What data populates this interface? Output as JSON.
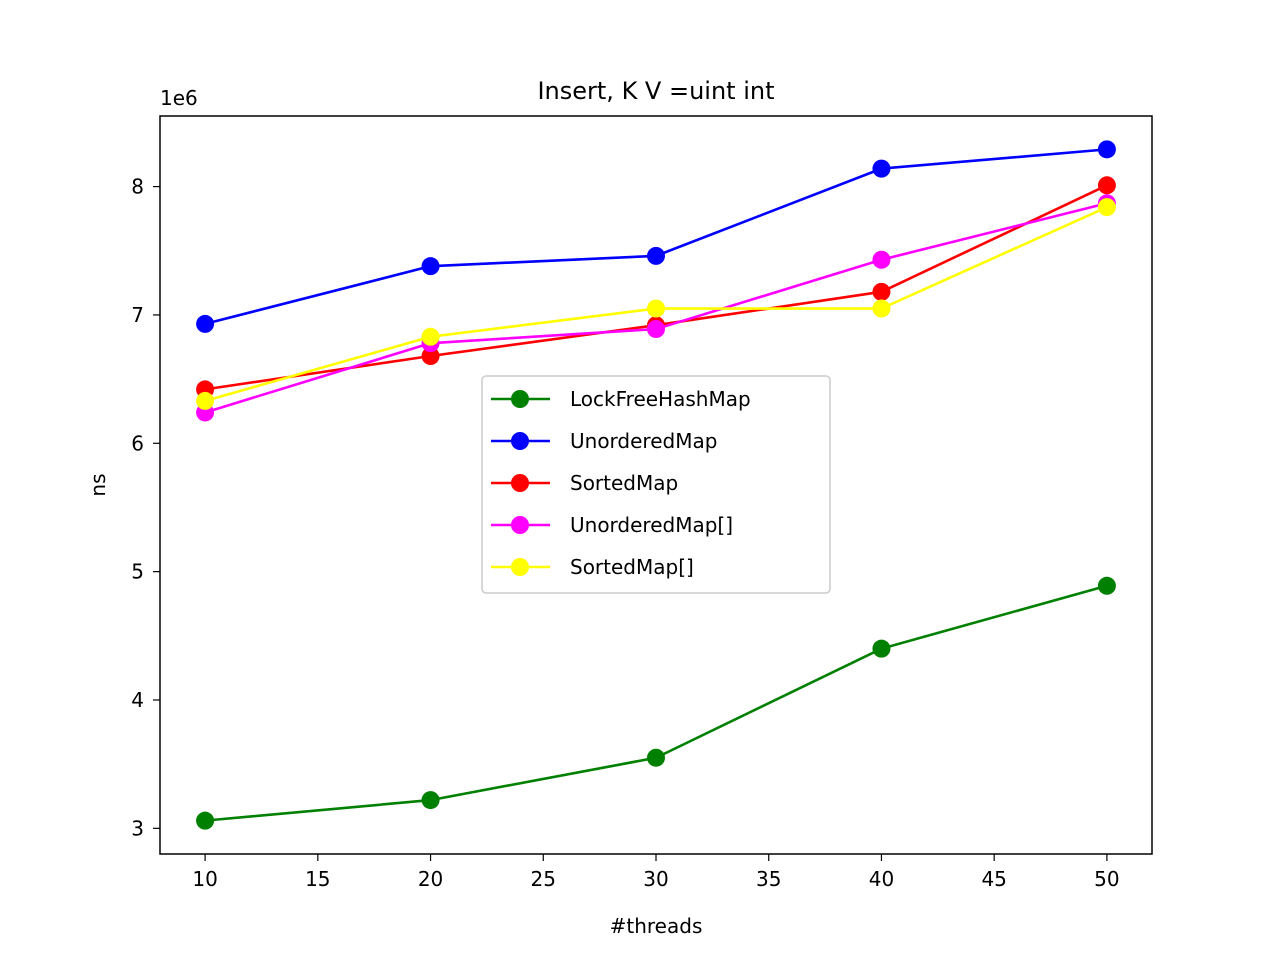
{
  "chart_data": {
    "type": "line",
    "title": "Insert, K V =uint int",
    "xlabel": "#threads",
    "ylabel": "ns",
    "y_offset_label": "1e6",
    "x": [
      10,
      20,
      30,
      40,
      50
    ],
    "xlim": [
      8,
      52
    ],
    "ylim": [
      2800000,
      8550000
    ],
    "x_ticks": [
      10,
      15,
      20,
      25,
      30,
      35,
      40,
      45,
      50
    ],
    "y_ticks": [
      3000000,
      4000000,
      5000000,
      6000000,
      7000000,
      8000000
    ],
    "y_tick_labels": [
      "3",
      "4",
      "5",
      "6",
      "7",
      "8"
    ],
    "grid": false,
    "legend_position": "center",
    "series": [
      {
        "name": "LockFreeHashMap",
        "color": "#008000",
        "values": [
          3060000,
          3220000,
          3550000,
          4400000,
          4890000
        ]
      },
      {
        "name": "UnorderedMap",
        "color": "#0000ff",
        "values": [
          6930000,
          7380000,
          7460000,
          8140000,
          8290000
        ]
      },
      {
        "name": "SortedMap",
        "color": "#ff0000",
        "values": [
          6420000,
          6680000,
          6920000,
          7180000,
          8010000
        ]
      },
      {
        "name": "UnorderedMap[]",
        "color": "#ff00ff",
        "values": [
          6240000,
          6780000,
          6890000,
          7430000,
          7870000
        ]
      },
      {
        "name": "SortedMap[]",
        "color": "#ffff00",
        "values": [
          6330000,
          6830000,
          7050000,
          7050000,
          7840000
        ]
      }
    ]
  }
}
